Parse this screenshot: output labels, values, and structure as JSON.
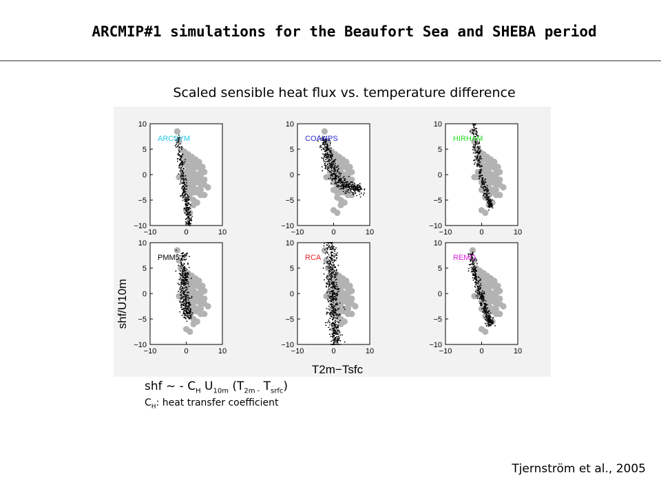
{
  "slide": {
    "title": "ARCMIP#1 simulations for the Beaufort Sea and SHEBA period",
    "subtitle": "Scaled sensible heat flux vs. temperature difference",
    "formula": {
      "shf": "shf ~ - C",
      "ch_sub": "H",
      "u": " U",
      "u_sub": "10m",
      "open": " (T",
      "t2m_sub": "2m -",
      "tsrfc": " T",
      "tsrfc_sub": "srfc",
      "close": ")"
    },
    "formula_note": {
      "c": "C",
      "c_sub": "H",
      "text": ": heat transfer coefficient"
    },
    "citation": "Tjernström et al., 2005"
  },
  "colors": {
    "observations": "#b3b3b3",
    "model": "#000000",
    "figure_background": "#f2f2f2",
    "ARCSYM": "#20c8e8",
    "COAMPS": "#2a2ad0",
    "HIRHAM": "#22dd22",
    "PMM5": "#000000",
    "RCA": "#ee2020",
    "REMO": "#e020e0"
  },
  "chart_data": {
    "type": "scatter",
    "xlabel": "T2m−Tsfc",
    "ylabel": "shf/U10m",
    "xlim": [
      -10,
      10
    ],
    "ylim": [
      -10,
      10
    ],
    "xticks": [
      -10,
      0,
      10
    ],
    "yticks": [
      -10,
      -5,
      0,
      5,
      10
    ],
    "grid": false,
    "observations": {
      "x": [
        -2.5,
        -2,
        -1.5,
        -1,
        -0.5,
        0,
        0.5,
        1,
        1.5,
        2,
        2.5,
        3,
        3.5,
        4,
        4.5,
        5,
        -1,
        0,
        1,
        2,
        3,
        4,
        -2,
        -1,
        0,
        1,
        2,
        3,
        4,
        5,
        0,
        1,
        2,
        3,
        4,
        5,
        6,
        1,
        2,
        3,
        4,
        2,
        3,
        4,
        5,
        1,
        2,
        3,
        -1,
        0,
        1,
        2,
        3,
        0,
        1,
        2,
        -0.5,
        0.5,
        1.5,
        2.5,
        3.5,
        0,
        1
      ],
      "y": [
        8.5,
        6.5,
        5,
        3.5,
        2.5,
        2,
        1.5,
        1.5,
        2,
        1.5,
        2,
        1.5,
        2,
        1,
        1.5,
        0.5,
        0.5,
        0.5,
        0.5,
        0.5,
        0,
        0,
        -0.5,
        -0.5,
        -0.5,
        -0.5,
        -0.5,
        -1,
        -1,
        -1,
        -1.5,
        -1.5,
        -1.5,
        -1.5,
        -2,
        -2,
        -2.5,
        -2.5,
        -2.5,
        -3,
        -3,
        -3.5,
        -3.5,
        -4,
        -4,
        -4.5,
        -5,
        -5.5,
        3,
        3,
        3,
        2.5,
        2.5,
        -3,
        -3.5,
        -6,
        4.5,
        4,
        3.5,
        3,
        2.5,
        -7,
        -7.5
      ]
    },
    "series": [
      {
        "name": "ARCSYM",
        "cloud": {
          "x": [
            [
              -2.5,
              7.5
            ],
            [
              -1.5,
              3
            ],
            [
              -1,
              0
            ],
            [
              -0.5,
              -3
            ],
            [
              0,
              -5
            ],
            [
              0.5,
              -7.5
            ],
            [
              1,
              -10
            ]
          ],
          "spread": 0.45,
          "count": 320
        }
      },
      {
        "name": "COAMPS",
        "cloud": {
          "x": [
            [
              -2.5,
              7
            ],
            [
              -2,
              5
            ],
            [
              -1.5,
              3
            ],
            [
              -0.5,
              1
            ],
            [
              1,
              -1
            ],
            [
              3,
              -2
            ],
            [
              5,
              -2.5
            ],
            [
              7,
              -3
            ]
          ],
          "spread": 0.9,
          "count": 520
        }
      },
      {
        "name": "HIRHAM",
        "cloud": {
          "x": [
            [
              -2,
              10
            ],
            [
              -1.5,
              6
            ],
            [
              -1,
              3
            ],
            [
              0,
              -0.5
            ],
            [
              1,
              -3
            ],
            [
              2,
              -5
            ],
            [
              2.5,
              -6.5
            ]
          ],
          "spread": 0.45,
          "count": 320
        }
      },
      {
        "name": "PMM5",
        "cloud": {
          "x": [
            [
              -1,
              8
            ],
            [
              -0.5,
              4
            ],
            [
              -0.5,
              1.5
            ],
            [
              -0.3,
              -1
            ],
            [
              0,
              -3
            ],
            [
              0.3,
              -4.5
            ]
          ],
          "spread": 0.7,
          "count": 380
        }
      },
      {
        "name": "RCA",
        "cloud": {
          "x": [
            [
              -0.8,
              10
            ],
            [
              -0.6,
              5
            ],
            [
              -0.4,
              1
            ],
            [
              0,
              -3
            ],
            [
              0.3,
              -6.5
            ],
            [
              0.5,
              -10
            ]
          ],
          "spread": 0.8,
          "count": 560
        }
      },
      {
        "name": "REMO",
        "cloud": {
          "x": [
            [
              -3,
              8
            ],
            [
              -2,
              4.5
            ],
            [
              -1,
              1.5
            ],
            [
              0,
              -1
            ],
            [
              1,
              -3
            ],
            [
              2,
              -5
            ],
            [
              2.5,
              -6
            ]
          ],
          "spread": 0.5,
          "count": 380
        }
      }
    ]
  }
}
